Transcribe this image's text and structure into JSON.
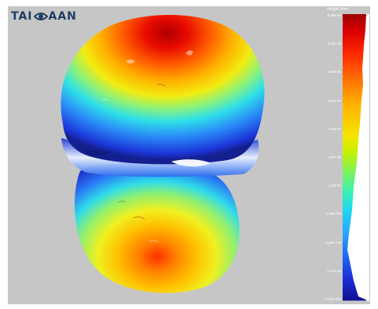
{
  "logo": {
    "text_left": "TAI",
    "text_right": "AAN",
    "icon": "eye-logo-icon"
  },
  "colorbar": {
    "title": "Height (mm)",
    "ticks": [
      "3.489 88",
      "3.116 86",
      "2.699 95",
      "2.311 94",
      "1.918 83",
      "1.597 65",
      "1.245 92",
      "0.868 7/5",
      "0.450 735",
      "0.128 93",
      "0.000 000"
    ]
  },
  "colors": {
    "background": "#c6c6c6",
    "hot": "#d40000",
    "warm": "#ffb400",
    "mid": "#f5e400",
    "cool": "#20d8f0",
    "cold": "#1a2ad0"
  }
}
